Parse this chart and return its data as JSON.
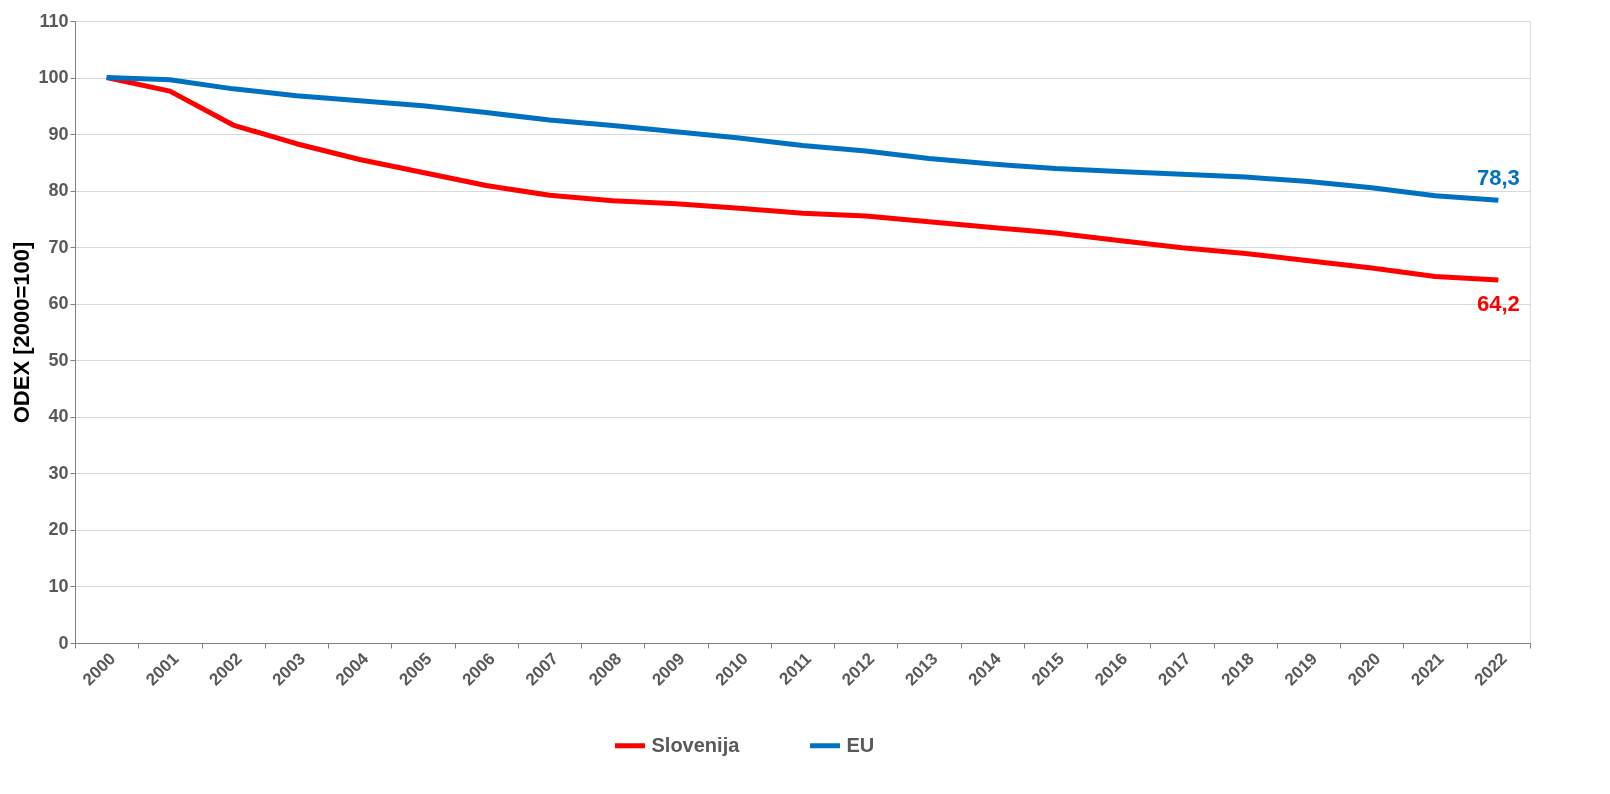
{
  "chart_data": {
    "type": "line",
    "ylabel": "ODEX [2000=100]",
    "categories": [
      "2000",
      "2001",
      "2002",
      "2003",
      "2004",
      "2005",
      "2006",
      "2007",
      "2008",
      "2009",
      "2010",
      "2011",
      "2012",
      "2013",
      "2014",
      "2015",
      "2016",
      "2017",
      "2018",
      "2019",
      "2020",
      "2021",
      "2022"
    ],
    "series": [
      {
        "name": "Slovenija",
        "color": "#ff0000",
        "values": [
          100,
          97.6,
          91.6,
          88.3,
          85.5,
          83.2,
          80.9,
          79.2,
          78.2,
          77.7,
          76.9,
          76.0,
          75.5,
          74.5,
          73.5,
          72.5,
          71.2,
          69.9,
          68.9,
          67.6,
          66.3,
          64.8,
          64.2
        ],
        "value_labels": [
          null,
          null,
          null,
          null,
          null,
          null,
          null,
          null,
          null,
          null,
          null,
          null,
          null,
          null,
          null,
          null,
          null,
          null,
          null,
          null,
          null,
          null,
          "64,2"
        ]
      },
      {
        "name": "EU",
        "color": "#0070c0",
        "values": [
          100,
          99.6,
          98.0,
          96.8,
          95.9,
          95.0,
          93.8,
          92.5,
          91.5,
          90.4,
          89.3,
          88.0,
          87.0,
          85.7,
          84.7,
          83.9,
          83.4,
          82.9,
          82.4,
          81.6,
          80.5,
          79.1,
          78.3
        ],
        "value_labels": [
          null,
          null,
          null,
          null,
          null,
          null,
          null,
          null,
          null,
          null,
          null,
          null,
          null,
          null,
          null,
          null,
          null,
          null,
          null,
          null,
          null,
          null,
          "78,3"
        ]
      }
    ],
    "ylim": [
      0,
      110
    ],
    "yticks": [
      0,
      10,
      20,
      30,
      40,
      50,
      60,
      70,
      80,
      90,
      100,
      110
    ],
    "grid": "y",
    "legend": "bottom",
    "marker": "none",
    "line_style": "solid"
  }
}
